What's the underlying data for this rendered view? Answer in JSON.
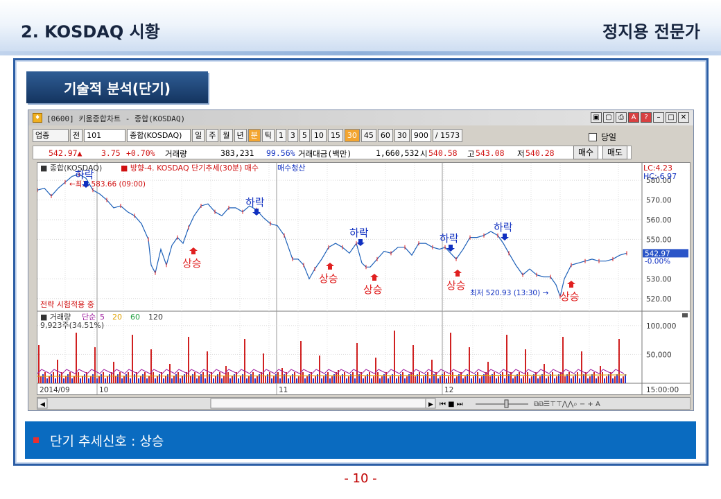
{
  "header": {
    "title": "2. KOSDAQ 시황",
    "author": "정지용 전문가"
  },
  "section": {
    "label": "기술적 분석(단기)"
  },
  "window": {
    "title": "[0600] 키움종합차트 - 종합(KOSDAQ)",
    "toolbar": [
      "업종",
      "전",
      "101",
      "종합(KOSDAQ)",
      "일",
      "주",
      "월",
      "년",
      "분",
      "틱",
      "1",
      "3",
      "5",
      "10",
      "15",
      "30",
      "45",
      "60",
      "30",
      "900",
      "/ 1573"
    ],
    "toolbar_selected": [
      "분",
      "30"
    ],
    "checkbox_label": "당일",
    "quote": {
      "price": "542.97▲",
      "change": "3.75",
      "pct": "+0.70%",
      "vol_label": "거래량",
      "vol": "383,231",
      "vol_pct": "99.56%",
      "amt_label": "거래대금(백만)",
      "amt": "1,660,532",
      "open_label": "시",
      "open": "540.58",
      "high_label": "고",
      "high": "543.08",
      "low_label": "저",
      "low": "540.28"
    },
    "buy_label": "매수",
    "sell_label": "매도"
  },
  "chart": {
    "legend_name": "종합(KOSDAQ)",
    "legend_strategy": "방향-4. KOSDAQ 단기추세(30분) 매수",
    "legend_exit": "매수청산",
    "lc_label": "LC:4.23",
    "hc_label": "HC:-6.97",
    "price_ticks": [
      "580.00",
      "570.00",
      "560.00",
      "550.00",
      "530.00",
      "520.00"
    ],
    "last_price": "542.97",
    "last_pct": "-0.00%",
    "max_label": "최고 583.66 (09:00)",
    "min_label": "최저 520.93 (13:30)",
    "strategy_note": "전략 시험적용 중",
    "vol_legend": [
      "거래량",
      "단순",
      "5",
      "20",
      "60",
      "120"
    ],
    "vol_value": "9,923주(34.51%)",
    "vol_ticks": [
      "100,000",
      "50,000"
    ],
    "x_labels": [
      "2014/09",
      "10",
      "11",
      "12"
    ],
    "time_label": "15:00:00",
    "annotations": [
      {
        "text": "하락",
        "kind": "down"
      },
      {
        "text": "하락",
        "kind": "down"
      },
      {
        "text": "하락",
        "kind": "down"
      },
      {
        "text": "하락",
        "kind": "down"
      },
      {
        "text": "하락",
        "kind": "down"
      },
      {
        "text": "상승",
        "kind": "up"
      },
      {
        "text": "상승",
        "kind": "up"
      },
      {
        "text": "상승",
        "kind": "up"
      },
      {
        "text": "상승",
        "kind": "up"
      },
      {
        "text": "상승",
        "kind": "up"
      }
    ],
    "colors": {
      "up": "#e02020",
      "down": "#1030c0",
      "line": "#1b5fb8",
      "accent": "#0a6bc0"
    }
  },
  "signal": {
    "text": "단기 추세신호 : 상승"
  },
  "page": {
    "number": "- 10 -"
  }
}
